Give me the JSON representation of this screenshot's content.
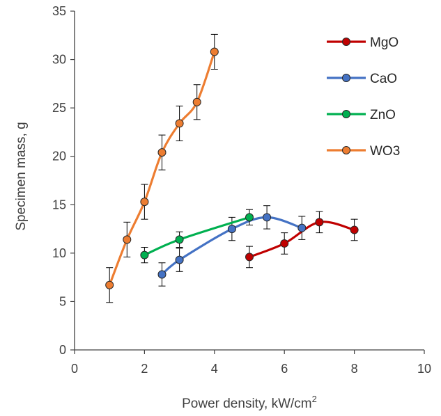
{
  "chart_data": {
    "type": "scatter",
    "title": "",
    "xlabel": "Power density, kW/cm",
    "xlabel_sup": "2",
    "ylabel": "Specimen mass, g",
    "xlim": [
      0,
      10
    ],
    "ylim": [
      0,
      35
    ],
    "x_ticks": [
      "0",
      "2",
      "4",
      "6",
      "8",
      "10"
    ],
    "y_ticks": [
      "0",
      "5",
      "10",
      "15",
      "20",
      "25",
      "30",
      "35"
    ],
    "grid": false,
    "legend_position": "top-right",
    "smooth_lines": true,
    "series": [
      {
        "name": "MgO",
        "color": "#c00000",
        "points": [
          {
            "x": 5,
            "y": 9.6,
            "err": 1.1
          },
          {
            "x": 6,
            "y": 11.0,
            "err": 1.1
          },
          {
            "x": 7,
            "y": 13.2,
            "err": 1.1
          },
          {
            "x": 8,
            "y": 12.4,
            "err": 1.1
          }
        ]
      },
      {
        "name": "CaO",
        "color": "#4472c4",
        "points": [
          {
            "x": 2.5,
            "y": 7.8,
            "err": 1.2
          },
          {
            "x": 3,
            "y": 9.3,
            "err": 1.2
          },
          {
            "x": 4.5,
            "y": 12.5,
            "err": 1.2
          },
          {
            "x": 5.5,
            "y": 13.7,
            "err": 1.2
          },
          {
            "x": 6.5,
            "y": 12.6,
            "err": 1.2
          }
        ]
      },
      {
        "name": "ZnO",
        "color": "#00b050",
        "points": [
          {
            "x": 2,
            "y": 9.8,
            "err": 0.8
          },
          {
            "x": 3,
            "y": 11.4,
            "err": 0.8
          },
          {
            "x": 5,
            "y": 13.7,
            "err": 0.8
          }
        ]
      },
      {
        "name": "WO3",
        "color": "#ed7d31",
        "points": [
          {
            "x": 1,
            "y": 6.7,
            "err": 1.8
          },
          {
            "x": 1.5,
            "y": 11.4,
            "err": 1.8
          },
          {
            "x": 2,
            "y": 15.3,
            "err": 1.8
          },
          {
            "x": 2.5,
            "y": 20.4,
            "err": 1.8
          },
          {
            "x": 3,
            "y": 23.4,
            "err": 1.8
          },
          {
            "x": 3.5,
            "y": 25.6,
            "err": 1.8
          },
          {
            "x": 4,
            "y": 30.8,
            "err": 1.8
          }
        ]
      }
    ]
  }
}
